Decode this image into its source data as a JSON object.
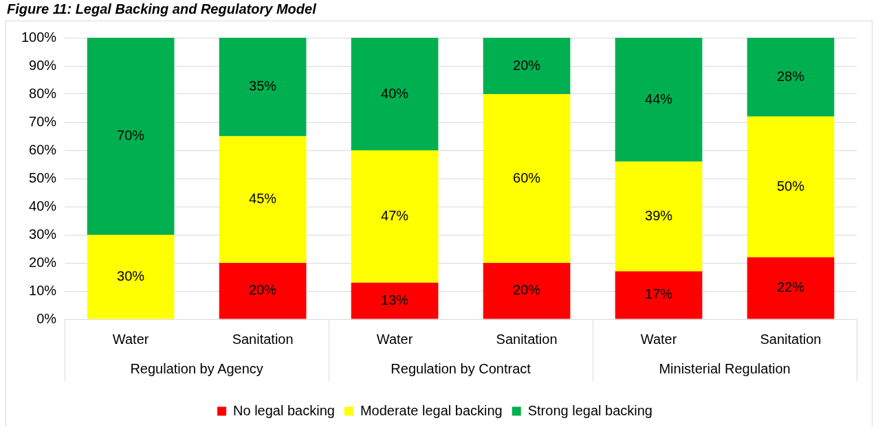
{
  "chart_data": {
    "type": "bar",
    "stacked": true,
    "title": "Figure 11: Legal Backing and Regulatory Model",
    "categories": [
      "Water",
      "Sanitation",
      "Water",
      "Sanitation",
      "Water",
      "Sanitation"
    ],
    "annotations": [
      "Regulation by Agency",
      "Regulation by Contract",
      "Ministerial Regulation"
    ],
    "series": [
      {
        "name": "No legal backing",
        "color": "#ff0000",
        "values": [
          0,
          20,
          13,
          20,
          17,
          22
        ],
        "value_labels": [
          null,
          "20%",
          "13%",
          "20%",
          "17%",
          "22%"
        ]
      },
      {
        "name": "Moderate legal backing",
        "color": "#ffff00",
        "values": [
          30,
          45,
          47,
          60,
          39,
          50
        ],
        "value_labels": [
          "30%",
          "45%",
          "47%",
          "60%",
          "39%",
          "50%"
        ]
      },
      {
        "name": "Strong legal backing",
        "color": "#00b050",
        "values": [
          70,
          35,
          40,
          20,
          44,
          28
        ],
        "value_labels": [
          "70%",
          "35%",
          "40%",
          "20%",
          "44%",
          "28%"
        ]
      }
    ],
    "ylim": [
      0,
      100
    ],
    "yticks": [
      {
        "value": 0,
        "label": "0%"
      },
      {
        "value": 10,
        "label": "10%"
      },
      {
        "value": 20,
        "label": "20%"
      },
      {
        "value": 30,
        "label": "30%"
      },
      {
        "value": 40,
        "label": "40%"
      },
      {
        "value": 50,
        "label": "50%"
      },
      {
        "value": 60,
        "label": "60%"
      },
      {
        "value": 70,
        "label": "70%"
      },
      {
        "value": 80,
        "label": "80%"
      },
      {
        "value": 90,
        "label": "90%"
      },
      {
        "value": 100,
        "label": "100%"
      }
    ],
    "grid": "y",
    "legend": "bottom"
  }
}
